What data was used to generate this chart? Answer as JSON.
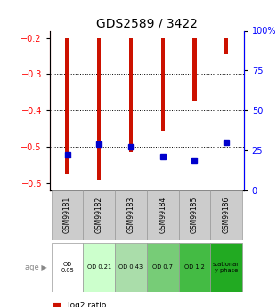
{
  "title": "GDS2589 / 3422",
  "samples": [
    "GSM99181",
    "GSM99182",
    "GSM99183",
    "GSM99184",
    "GSM99185",
    "GSM99186"
  ],
  "log2_ratio_bottom": [
    -0.575,
    -0.59,
    -0.515,
    -0.455,
    -0.375,
    -0.245
  ],
  "log2_ratio_top": [
    -0.2,
    -0.2,
    -0.2,
    -0.2,
    -0.2,
    -0.2
  ],
  "percentile_rank_pct": [
    22,
    29,
    27,
    21,
    19,
    30
  ],
  "ylim_left": [
    -0.62,
    -0.18
  ],
  "ylim_right": [
    0,
    100
  ],
  "yticks_left": [
    -0.6,
    -0.5,
    -0.4,
    -0.3,
    -0.2
  ],
  "yticks_right": [
    0,
    25,
    50,
    75,
    100
  ],
  "ytick_labels_right": [
    "0",
    "25",
    "50",
    "75",
    "100%"
  ],
  "bar_color": "#cc1100",
  "percentile_color": "#0000cc",
  "age_labels": [
    "OD\n0.05",
    "OD 0.21",
    "OD 0.43",
    "OD 0.7",
    "OD 1.2",
    "stationar\ny phase"
  ],
  "age_bg_colors": [
    "#ffffff",
    "#ccffcc",
    "#aaddaa",
    "#77cc77",
    "#44bb44",
    "#22aa22"
  ],
  "sample_bg_color": "#cccccc",
  "title_fontsize": 10,
  "tick_fontsize": 7,
  "bar_width": 0.12
}
